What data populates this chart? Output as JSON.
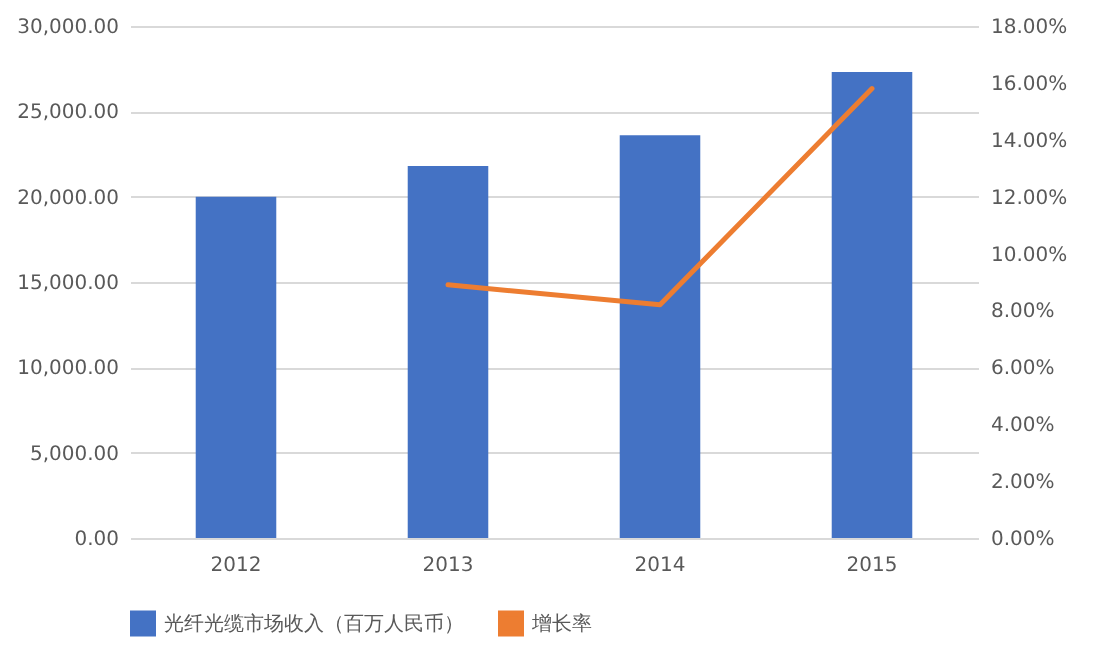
{
  "chart_data": {
    "type": "bar",
    "categories": [
      "2012",
      "2013",
      "2014",
      "2015"
    ],
    "series": [
      {
        "name": "光纤光缆市场收入（百万人民币）",
        "color": "#4472c4",
        "values": [
          20000,
          21800,
          23600,
          27300
        ]
      },
      {
        "name": "增长率",
        "type": "line",
        "axis": "y2",
        "color": "#ed7d31",
        "values": [
          null,
          8.9,
          8.2,
          15.8
        ]
      }
    ],
    "ylim": [
      0,
      30000
    ],
    "yticks": [
      {
        "value": 0,
        "label": "0.00"
      },
      {
        "value": 5000,
        "label": "5,000.00"
      },
      {
        "value": 10000,
        "label": "10,000.00"
      },
      {
        "value": 15000,
        "label": "15,000.00"
      },
      {
        "value": 20000,
        "label": "20,000.00"
      },
      {
        "value": 25000,
        "label": "25,000.00"
      },
      {
        "value": 30000,
        "label": "30,000.00"
      }
    ],
    "y2lim": [
      0,
      18
    ],
    "y2ticks": [
      {
        "value": 0,
        "label": "0.00%"
      },
      {
        "value": 2,
        "label": "2.00%"
      },
      {
        "value": 4,
        "label": "4.00%"
      },
      {
        "value": 6,
        "label": "6.00%"
      },
      {
        "value": 8,
        "label": "8.00%"
      },
      {
        "value": 10,
        "label": "10.00%"
      },
      {
        "value": 12,
        "label": "12.00%"
      },
      {
        "value": 14,
        "label": "14.00%"
      },
      {
        "value": 16,
        "label": "16.00%"
      },
      {
        "value": 18,
        "label": "18.00%"
      }
    ],
    "grid": "y",
    "legend": "bottom",
    "marker": "none",
    "line_style": "solid"
  }
}
